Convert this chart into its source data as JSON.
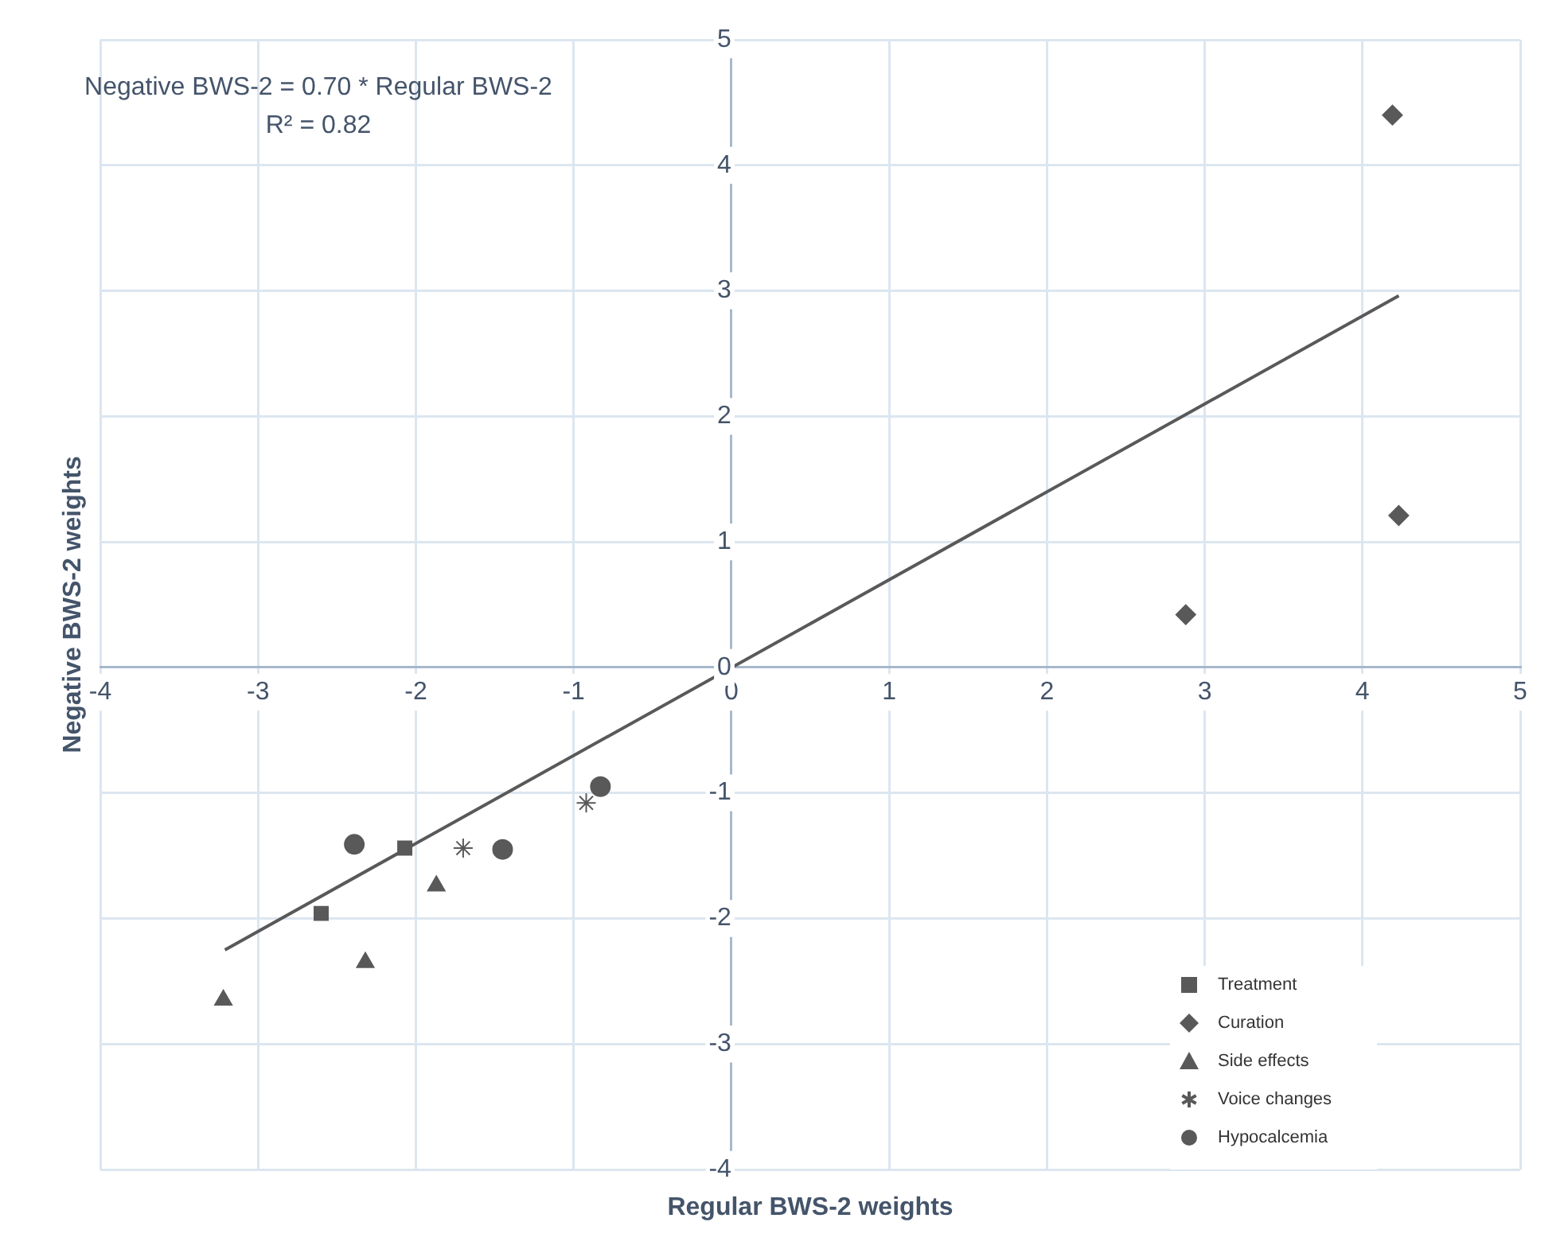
{
  "chart_data": {
    "type": "scatter",
    "xlabel": "Regular BWS-2 weights",
    "ylabel": "Negative BWS-2 weights",
    "annotations": [
      "Negative BWS-2 = 0.70 * Regular BWS-2",
      "R² = 0.82"
    ],
    "xlim": [
      -4,
      5
    ],
    "xticks": [
      -4,
      -3,
      -2,
      -1,
      0,
      1,
      2,
      3,
      4,
      5
    ],
    "ylim": [
      -4,
      5
    ],
    "yticks": [
      -4,
      -3,
      -2,
      -1,
      0,
      1,
      2,
      3,
      4,
      5
    ],
    "grid": true,
    "legend": "bottom right",
    "series": [
      {
        "name": "Treatment",
        "color": "#595959",
        "marker": "square",
        "x": [
          -2.07,
          -2.6
        ],
        "values": [
          -1.44,
          -1.96
        ]
      },
      {
        "name": "Curation",
        "color": "#595959",
        "marker": "diamond",
        "x": [
          4.19,
          4.23,
          2.88
        ],
        "values": [
          4.4,
          1.21,
          0.42
        ]
      },
      {
        "name": "Side effects",
        "color": "#595959",
        "marker": "triangle",
        "x": [
          -3.22,
          -2.32,
          -1.87
        ],
        "values": [
          -2.65,
          -2.35,
          -1.74
        ]
      },
      {
        "name": "Voice changes",
        "color": "#595959",
        "marker": "cross",
        "x": [
          -1.7,
          -0.92
        ],
        "values": [
          -1.44,
          -1.08
        ]
      },
      {
        "name": "Hypocalcemia",
        "color": "#595959",
        "marker": "circle",
        "x": [
          -2.39,
          -1.45,
          -0.83
        ],
        "values": [
          -1.41,
          -1.45,
          -0.95
        ]
      },
      {
        "type": "line",
        "color": "#595959",
        "marker": "none",
        "x": [
          -3.21,
          4.23
        ],
        "values": [
          -2.25,
          2.96
        ]
      }
    ]
  }
}
